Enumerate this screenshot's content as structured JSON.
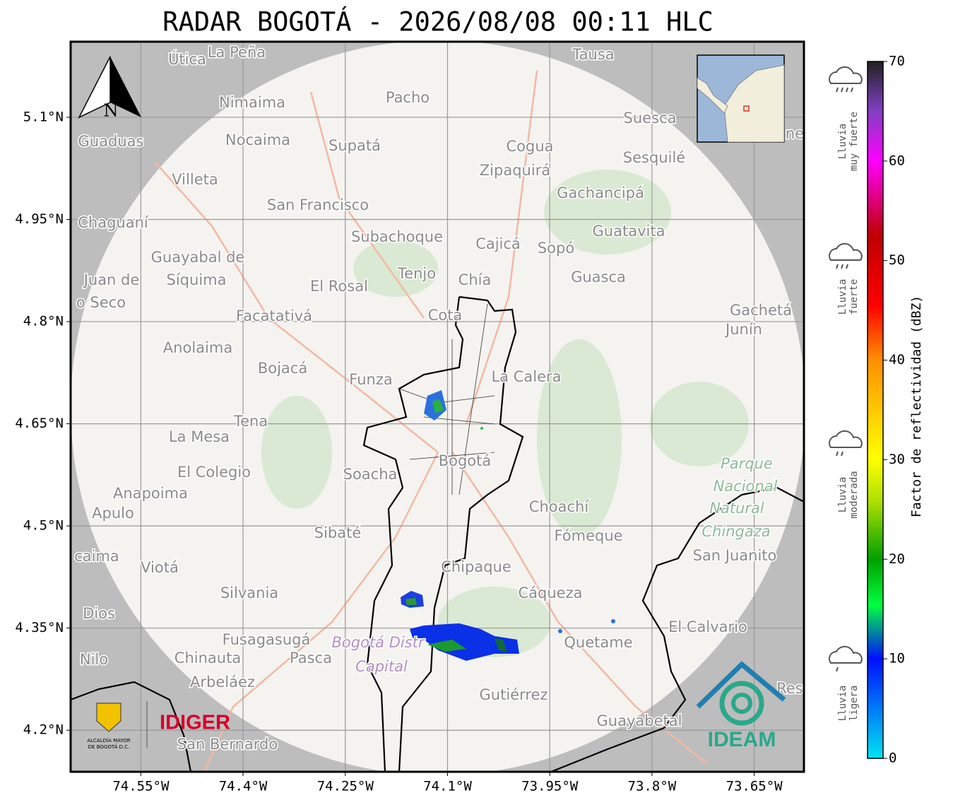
{
  "title": "RADAR BOGOTÁ - 2026/08/08 00:11 HLC",
  "map": {
    "lonlim": [
      -74.653,
      -73.577
    ],
    "latlim": [
      4.139,
      5.211
    ],
    "lonticks": [
      {
        "value": -74.55,
        "label": "74.55°W"
      },
      {
        "value": -74.4,
        "label": "74.4°W"
      },
      {
        "value": -74.25,
        "label": "74.25°W"
      },
      {
        "value": -74.1,
        "label": "74.1°W"
      },
      {
        "value": -73.95,
        "label": "73.95°W"
      },
      {
        "value": -73.8,
        "label": "73.8°W"
      },
      {
        "value": -73.65,
        "label": "73.65°W"
      }
    ],
    "latticks": [
      {
        "value": 5.1,
        "label": "5.1°N"
      },
      {
        "value": 4.95,
        "label": "4.95°N"
      },
      {
        "value": 4.8,
        "label": "4.8°N"
      },
      {
        "value": 4.65,
        "label": "4.65°N"
      },
      {
        "value": 4.5,
        "label": "4.5°N"
      },
      {
        "value": 4.35,
        "label": "4.35°N"
      },
      {
        "value": 4.2,
        "label": "4.2°N"
      }
    ],
    "north": "N",
    "places": [
      "Útica",
      "La Peña",
      "Tausa",
      "Pacho",
      "Nimaima",
      "Suesca",
      "Guaduas",
      "Nocaima",
      "Supatá",
      "Cogua",
      "Sesquilé",
      "Zipaquirá",
      "Villeta",
      "Gachancipá",
      "San Francisco",
      "Chaguaní",
      "Guatavita",
      "Subachoque",
      "Cajicá",
      "Sopó",
      "Guayabal de",
      "Síquima",
      "Tenjo",
      "Chía",
      "Guasca",
      "Juan de",
      "o Seco",
      "El Rosal",
      "Facatativá",
      "Gachetá",
      "Junín",
      "Cota",
      "Anolaima",
      "Bojacá",
      "Funza",
      "La Calera",
      "Tena",
      "La Mesa",
      "Bogotá",
      "Soacha",
      "El Colegio",
      "Anapoima",
      "Apulo",
      "Choachí",
      "Sibaté",
      "Fómeque",
      "San Juanito",
      "caima",
      "Viotá",
      "Chipaque",
      "Silvania",
      "Cáqueza",
      "Dios",
      "El Calvario",
      "Fusagasugá",
      "Quetame",
      "Nilo",
      "Chinauta",
      "Pasca",
      "Arbeláez",
      "Gutiérrez",
      "Guayabetal",
      "San Bernardo",
      "Res",
      "ne",
      "Bogotá Distr",
      "Capital",
      "Parque",
      "Nacional",
      "Natural",
      "Chingaza"
    ]
  },
  "logos": {
    "alcaldia": [
      "ALCALDÍA MAYOR",
      "DE BOGOTÁ D.C."
    ],
    "idiger": "IDIGER",
    "ideam": "IDEAM"
  },
  "colorbar": {
    "label": "Factor de reflectividad (dBZ)",
    "lim": [
      0,
      70
    ],
    "ticks": [
      0,
      10,
      20,
      30,
      40,
      50,
      60,
      70
    ],
    "rain": [
      [
        "Lluvia",
        "muy fuerte"
      ],
      [
        "Lluvia",
        "fuerte"
      ],
      [
        "Lluvia",
        "moderada"
      ],
      [
        "Lluvia",
        "ligera"
      ]
    ]
  }
}
